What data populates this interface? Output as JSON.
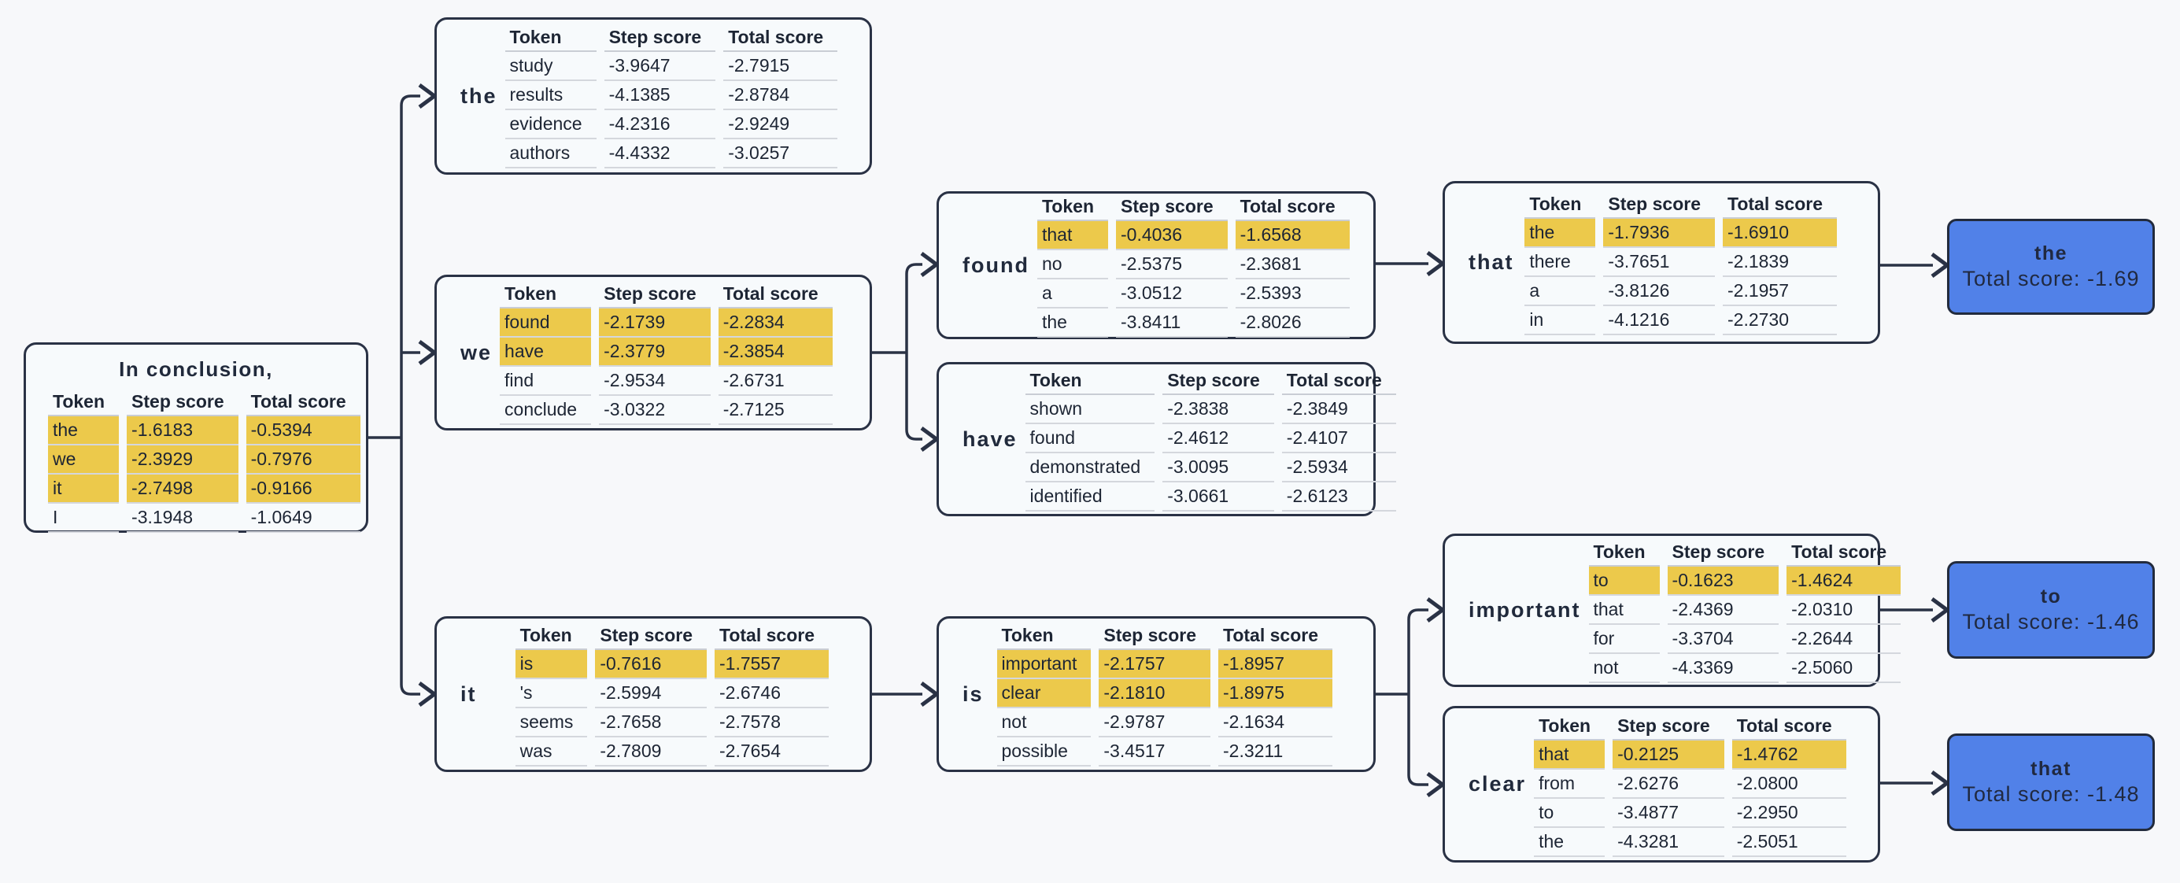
{
  "diagram": {
    "table_headers": [
      "Token",
      "Step score",
      "Total score"
    ],
    "colors": {
      "highlight": "#ecc94b",
      "leaf_bg": "#5181e8",
      "line": "#2a3245",
      "background": "#f7f8fa"
    },
    "root": {
      "title": "In conclusion,",
      "rows": [
        {
          "token": "the",
          "step": "-1.6183",
          "total": "-0.5394",
          "highlight": true
        },
        {
          "token": "we",
          "step": "-2.3929",
          "total": "-0.7976",
          "highlight": true
        },
        {
          "token": "it",
          "step": "-2.7498",
          "total": "-0.9166",
          "highlight": true
        },
        {
          "token": "I",
          "step": "-3.1948",
          "total": "-1.0649",
          "highlight": false
        }
      ]
    },
    "nodes": [
      {
        "label": "the",
        "rows": [
          {
            "token": "study",
            "step": "-3.9647",
            "total": "-2.7915",
            "highlight": false
          },
          {
            "token": "results",
            "step": "-4.1385",
            "total": "-2.8784",
            "highlight": false
          },
          {
            "token": "evidence",
            "step": "-4.2316",
            "total": "-2.9249",
            "highlight": false
          },
          {
            "token": "authors",
            "step": "-4.4332",
            "total": "-3.0257",
            "highlight": false
          }
        ]
      },
      {
        "label": "we",
        "rows": [
          {
            "token": "found",
            "step": "-2.1739",
            "total": "-2.2834",
            "highlight": true
          },
          {
            "token": "have",
            "step": "-2.3779",
            "total": "-2.3854",
            "highlight": true
          },
          {
            "token": "find",
            "step": "-2.9534",
            "total": "-2.6731",
            "highlight": false
          },
          {
            "token": "conclude",
            "step": "-3.0322",
            "total": "-2.7125",
            "highlight": false
          }
        ]
      },
      {
        "label": "it",
        "rows": [
          {
            "token": "is",
            "step": "-0.7616",
            "total": "-1.7557",
            "highlight": true
          },
          {
            "token": "'s",
            "step": "-2.5994",
            "total": "-2.6746",
            "highlight": false
          },
          {
            "token": "seems",
            "step": "-2.7658",
            "total": "-2.7578",
            "highlight": false
          },
          {
            "token": "was",
            "step": "-2.7809",
            "total": "-2.7654",
            "highlight": false
          }
        ]
      },
      {
        "label": "found",
        "rows": [
          {
            "token": "that",
            "step": "-0.4036",
            "total": "-1.6568",
            "highlight": true
          },
          {
            "token": "no",
            "step": "-2.5375",
            "total": "-2.3681",
            "highlight": false
          },
          {
            "token": "a",
            "step": "-3.0512",
            "total": "-2.5393",
            "highlight": false
          },
          {
            "token": "the",
            "step": "-3.8411",
            "total": "-2.8026",
            "highlight": false
          }
        ]
      },
      {
        "label": "have",
        "rows": [
          {
            "token": "shown",
            "step": "-2.3838",
            "total": "-2.3849",
            "highlight": false
          },
          {
            "token": "found",
            "step": "-2.4612",
            "total": "-2.4107",
            "highlight": false
          },
          {
            "token": "demonstrated",
            "step": "-3.0095",
            "total": "-2.5934",
            "highlight": false
          },
          {
            "token": "identified",
            "step": "-3.0661",
            "total": "-2.6123",
            "highlight": false
          }
        ]
      },
      {
        "label": "is",
        "rows": [
          {
            "token": "important",
            "step": "-2.1757",
            "total": "-1.8957",
            "highlight": true
          },
          {
            "token": "clear",
            "step": "-2.1810",
            "total": "-1.8975",
            "highlight": true
          },
          {
            "token": "not",
            "step": "-2.9787",
            "total": "-2.1634",
            "highlight": false
          },
          {
            "token": "possible",
            "step": "-3.4517",
            "total": "-2.3211",
            "highlight": false
          }
        ]
      },
      {
        "label": "that",
        "rows": [
          {
            "token": "the",
            "step": "-1.7936",
            "total": "-1.6910",
            "highlight": true
          },
          {
            "token": "there",
            "step": "-3.7651",
            "total": "-2.1839",
            "highlight": false
          },
          {
            "token": "a",
            "step": "-3.8126",
            "total": "-2.1957",
            "highlight": false
          },
          {
            "token": "in",
            "step": "-4.1216",
            "total": "-2.2730",
            "highlight": false
          }
        ]
      },
      {
        "label": "important",
        "rows": [
          {
            "token": "to",
            "step": "-0.1623",
            "total": "-1.4624",
            "highlight": true
          },
          {
            "token": "that",
            "step": "-2.4369",
            "total": "-2.0310",
            "highlight": false
          },
          {
            "token": "for",
            "step": "-3.3704",
            "total": "-2.2644",
            "highlight": false
          },
          {
            "token": "not",
            "step": "-4.3369",
            "total": "-2.5060",
            "highlight": false
          }
        ]
      },
      {
        "label": "clear",
        "rows": [
          {
            "token": "that",
            "step": "-0.2125",
            "total": "-1.4762",
            "highlight": true
          },
          {
            "token": "from",
            "step": "-2.6276",
            "total": "-2.0800",
            "highlight": false
          },
          {
            "token": "to",
            "step": "-3.4877",
            "total": "-2.2950",
            "highlight": false
          },
          {
            "token": "the",
            "step": "-4.3281",
            "total": "-2.5051",
            "highlight": false
          }
        ]
      }
    ],
    "leaves": [
      {
        "label": "the",
        "score_text": "Total score: -1.69"
      },
      {
        "label": "to",
        "score_text": "Total score: -1.46"
      },
      {
        "label": "that",
        "score_text": "Total score: -1.48"
      }
    ]
  }
}
